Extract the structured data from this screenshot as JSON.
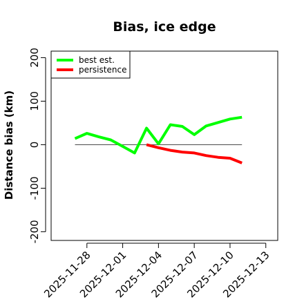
{
  "chart_data": {
    "type": "line",
    "title": "Bias, ice edge",
    "xlabel": "",
    "ylabel": "Distance bias (km)",
    "x_ticks": [
      "2025-11-28",
      "2025-12-01",
      "2025-12-04",
      "2025-12-07",
      "2025-12-10",
      "2025-12-13"
    ],
    "y_ticks": [
      -200,
      -100,
      0,
      100,
      200
    ],
    "xlim": [
      "2025-11-25",
      "2025-12-14"
    ],
    "ylim": [
      -220,
      215
    ],
    "reference_line": 0,
    "legend_position": "top-left",
    "series": [
      {
        "name": "best est.",
        "color": "#00ff00",
        "x": [
          "2025-11-27",
          "2025-11-28",
          "2025-11-29",
          "2025-11-30",
          "2025-12-01",
          "2025-12-02",
          "2025-12-03",
          "2025-12-04",
          "2025-12-05",
          "2025-12-06",
          "2025-12-07",
          "2025-12-08",
          "2025-12-09",
          "2025-12-10",
          "2025-12-11"
        ],
        "values": [
          14,
          26,
          18,
          11,
          -4,
          -19,
          38,
          2,
          46,
          42,
          23,
          43,
          51,
          59,
          63
        ]
      },
      {
        "name": "persistence",
        "color": "#ff0000",
        "x": [
          "2025-12-03",
          "2025-12-04",
          "2025-12-05",
          "2025-12-06",
          "2025-12-07",
          "2025-12-08",
          "2025-12-09",
          "2025-12-10",
          "2025-12-11"
        ],
        "values": [
          0,
          -7,
          -13,
          -17,
          -19,
          -25,
          -29,
          -31,
          -42
        ]
      }
    ]
  }
}
